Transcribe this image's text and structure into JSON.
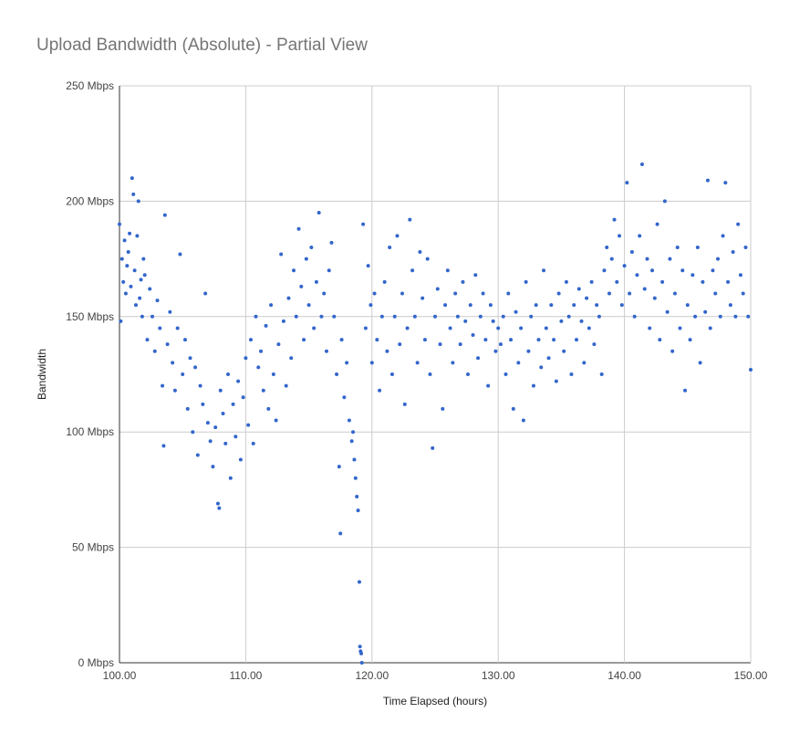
{
  "chart_data": {
    "type": "scatter",
    "title": "Upload Bandwidth (Absolute) - Partial View",
    "xlabel": "Time Elapsed (hours)",
    "ylabel": "Bandwidth",
    "xlim": [
      100,
      150
    ],
    "ylim": [
      0,
      250
    ],
    "x_ticks": [
      100,
      110,
      120,
      130,
      140,
      150
    ],
    "x_tick_labels": [
      "100.00",
      "110.00",
      "120.00",
      "130.00",
      "140.00",
      "150.00"
    ],
    "y_ticks": [
      0,
      50,
      100,
      150,
      200,
      250
    ],
    "y_tick_labels": [
      "0 Mbps",
      "50 Mbps",
      "100 Mbps",
      "150 Mbps",
      "200 Mbps",
      "250 Mbps"
    ],
    "grid": true,
    "legend": "none",
    "point_color": "#3366cc",
    "series": [
      {
        "values": [
          [
            100.0,
            190
          ],
          [
            100.1,
            148
          ],
          [
            100.2,
            175
          ],
          [
            100.3,
            165
          ],
          [
            100.4,
            183
          ],
          [
            100.5,
            160
          ],
          [
            100.6,
            172
          ],
          [
            100.7,
            178
          ],
          [
            100.8,
            186
          ],
          [
            100.9,
            163
          ],
          [
            101.0,
            210
          ],
          [
            101.1,
            203
          ],
          [
            101.2,
            170
          ],
          [
            101.3,
            155
          ],
          [
            101.4,
            185
          ],
          [
            101.5,
            200
          ],
          [
            101.6,
            158
          ],
          [
            101.7,
            166
          ],
          [
            101.8,
            150
          ],
          [
            101.9,
            175
          ],
          [
            102.0,
            168
          ],
          [
            102.2,
            140
          ],
          [
            102.4,
            162
          ],
          [
            102.6,
            150
          ],
          [
            102.8,
            135
          ],
          [
            103.0,
            157
          ],
          [
            103.2,
            145
          ],
          [
            103.4,
            120
          ],
          [
            103.5,
            94
          ],
          [
            103.6,
            194
          ],
          [
            103.8,
            138
          ],
          [
            104.0,
            152
          ],
          [
            104.2,
            130
          ],
          [
            104.4,
            118
          ],
          [
            104.6,
            145
          ],
          [
            104.8,
            177
          ],
          [
            105.0,
            125
          ],
          [
            105.2,
            140
          ],
          [
            105.4,
            110
          ],
          [
            105.6,
            132
          ],
          [
            105.8,
            100
          ],
          [
            106.0,
            128
          ],
          [
            106.2,
            90
          ],
          [
            106.4,
            120
          ],
          [
            106.6,
            112
          ],
          [
            106.8,
            160
          ],
          [
            107.0,
            104
          ],
          [
            107.2,
            96
          ],
          [
            107.4,
            85
          ],
          [
            107.6,
            102
          ],
          [
            107.8,
            69
          ],
          [
            107.9,
            67
          ],
          [
            108.0,
            118
          ],
          [
            108.2,
            108
          ],
          [
            108.4,
            95
          ],
          [
            108.6,
            125
          ],
          [
            108.8,
            80
          ],
          [
            109.0,
            112
          ],
          [
            109.2,
            98
          ],
          [
            109.4,
            122
          ],
          [
            109.6,
            88
          ],
          [
            109.8,
            115
          ],
          [
            110.0,
            132
          ],
          [
            110.2,
            103
          ],
          [
            110.4,
            140
          ],
          [
            110.6,
            95
          ],
          [
            110.8,
            150
          ],
          [
            111.0,
            128
          ],
          [
            111.2,
            135
          ],
          [
            111.4,
            118
          ],
          [
            111.6,
            146
          ],
          [
            111.8,
            110
          ],
          [
            112.0,
            155
          ],
          [
            112.2,
            125
          ],
          [
            112.4,
            105
          ],
          [
            112.6,
            138
          ],
          [
            112.8,
            177
          ],
          [
            113.0,
            148
          ],
          [
            113.2,
            120
          ],
          [
            113.4,
            158
          ],
          [
            113.6,
            132
          ],
          [
            113.8,
            170
          ],
          [
            114.0,
            150
          ],
          [
            114.2,
            188
          ],
          [
            114.4,
            163
          ],
          [
            114.6,
            140
          ],
          [
            114.8,
            175
          ],
          [
            115.0,
            155
          ],
          [
            115.2,
            180
          ],
          [
            115.4,
            145
          ],
          [
            115.6,
            165
          ],
          [
            115.8,
            195
          ],
          [
            116.0,
            150
          ],
          [
            116.2,
            160
          ],
          [
            116.4,
            135
          ],
          [
            116.6,
            170
          ],
          [
            116.8,
            182
          ],
          [
            117.0,
            150
          ],
          [
            117.2,
            125
          ],
          [
            117.4,
            85
          ],
          [
            117.5,
            56
          ],
          [
            117.6,
            140
          ],
          [
            117.8,
            115
          ],
          [
            118.0,
            130
          ],
          [
            118.2,
            105
          ],
          [
            118.4,
            96
          ],
          [
            118.5,
            100
          ],
          [
            118.6,
            88
          ],
          [
            118.7,
            80
          ],
          [
            118.8,
            72
          ],
          [
            118.9,
            66
          ],
          [
            119.0,
            35
          ],
          [
            119.05,
            7
          ],
          [
            119.1,
            5
          ],
          [
            119.15,
            4
          ],
          [
            119.2,
            0
          ],
          [
            119.3,
            190
          ],
          [
            119.5,
            145
          ],
          [
            119.7,
            172
          ],
          [
            119.9,
            155
          ],
          [
            120.0,
            130
          ],
          [
            120.2,
            160
          ],
          [
            120.4,
            140
          ],
          [
            120.6,
            118
          ],
          [
            120.8,
            150
          ],
          [
            121.0,
            165
          ],
          [
            121.2,
            135
          ],
          [
            121.4,
            180
          ],
          [
            121.6,
            125
          ],
          [
            121.8,
            150
          ],
          [
            122.0,
            185
          ],
          [
            122.2,
            138
          ],
          [
            122.4,
            160
          ],
          [
            122.6,
            112
          ],
          [
            122.8,
            145
          ],
          [
            123.0,
            192
          ],
          [
            123.2,
            170
          ],
          [
            123.4,
            150
          ],
          [
            123.6,
            130
          ],
          [
            123.8,
            178
          ],
          [
            124.0,
            158
          ],
          [
            124.2,
            140
          ],
          [
            124.4,
            175
          ],
          [
            124.6,
            125
          ],
          [
            124.8,
            93
          ],
          [
            125.0,
            150
          ],
          [
            125.2,
            162
          ],
          [
            125.4,
            138
          ],
          [
            125.6,
            110
          ],
          [
            125.8,
            155
          ],
          [
            126.0,
            170
          ],
          [
            126.2,
            145
          ],
          [
            126.4,
            130
          ],
          [
            126.6,
            160
          ],
          [
            126.8,
            150
          ],
          [
            127.0,
            138
          ],
          [
            127.2,
            165
          ],
          [
            127.4,
            148
          ],
          [
            127.6,
            125
          ],
          [
            127.8,
            155
          ],
          [
            128.0,
            142
          ],
          [
            128.2,
            168
          ],
          [
            128.4,
            132
          ],
          [
            128.6,
            150
          ],
          [
            128.8,
            160
          ],
          [
            129.0,
            140
          ],
          [
            129.2,
            120
          ],
          [
            129.4,
            155
          ],
          [
            129.6,
            148
          ],
          [
            129.8,
            135
          ],
          [
            130.0,
            145
          ],
          [
            130.2,
            138
          ],
          [
            130.4,
            150
          ],
          [
            130.6,
            125
          ],
          [
            130.8,
            160
          ],
          [
            131.0,
            140
          ],
          [
            131.2,
            110
          ],
          [
            131.4,
            152
          ],
          [
            131.6,
            130
          ],
          [
            131.8,
            145
          ],
          [
            132.0,
            105
          ],
          [
            132.2,
            165
          ],
          [
            132.4,
            135
          ],
          [
            132.6,
            150
          ],
          [
            132.8,
            120
          ],
          [
            133.0,
            155
          ],
          [
            133.2,
            140
          ],
          [
            133.4,
            128
          ],
          [
            133.6,
            170
          ],
          [
            133.8,
            145
          ],
          [
            134.0,
            132
          ],
          [
            134.2,
            155
          ],
          [
            134.4,
            140
          ],
          [
            134.6,
            122
          ],
          [
            134.8,
            160
          ],
          [
            135.0,
            148
          ],
          [
            135.2,
            135
          ],
          [
            135.4,
            165
          ],
          [
            135.6,
            150
          ],
          [
            135.8,
            125
          ],
          [
            136.0,
            155
          ],
          [
            136.2,
            140
          ],
          [
            136.4,
            162
          ],
          [
            136.6,
            148
          ],
          [
            136.8,
            130
          ],
          [
            137.0,
            158
          ],
          [
            137.2,
            145
          ],
          [
            137.4,
            165
          ],
          [
            137.6,
            138
          ],
          [
            137.8,
            155
          ],
          [
            138.0,
            150
          ],
          [
            138.2,
            125
          ],
          [
            138.4,
            170
          ],
          [
            138.6,
            180
          ],
          [
            138.8,
            160
          ],
          [
            139.0,
            175
          ],
          [
            139.2,
            192
          ],
          [
            139.4,
            165
          ],
          [
            139.6,
            185
          ],
          [
            139.8,
            155
          ],
          [
            140.0,
            172
          ],
          [
            140.2,
            208
          ],
          [
            140.4,
            160
          ],
          [
            140.6,
            178
          ],
          [
            140.8,
            150
          ],
          [
            141.0,
            168
          ],
          [
            141.2,
            185
          ],
          [
            141.4,
            216
          ],
          [
            141.6,
            162
          ],
          [
            141.8,
            175
          ],
          [
            142.0,
            145
          ],
          [
            142.2,
            170
          ],
          [
            142.4,
            158
          ],
          [
            142.6,
            190
          ],
          [
            142.8,
            140
          ],
          [
            143.0,
            165
          ],
          [
            143.2,
            200
          ],
          [
            143.4,
            152
          ],
          [
            143.6,
            175
          ],
          [
            143.8,
            135
          ],
          [
            144.0,
            160
          ],
          [
            144.2,
            180
          ],
          [
            144.4,
            145
          ],
          [
            144.6,
            170
          ],
          [
            144.8,
            118
          ],
          [
            145.0,
            155
          ],
          [
            145.2,
            140
          ],
          [
            145.4,
            168
          ],
          [
            145.6,
            150
          ],
          [
            145.8,
            180
          ],
          [
            146.0,
            130
          ],
          [
            146.2,
            165
          ],
          [
            146.4,
            152
          ],
          [
            146.6,
            209
          ],
          [
            146.8,
            145
          ],
          [
            147.0,
            170
          ],
          [
            147.2,
            160
          ],
          [
            147.4,
            175
          ],
          [
            147.6,
            150
          ],
          [
            147.8,
            185
          ],
          [
            148.0,
            208
          ],
          [
            148.2,
            165
          ],
          [
            148.4,
            155
          ],
          [
            148.6,
            178
          ],
          [
            148.8,
            150
          ],
          [
            149.0,
            190
          ],
          [
            149.2,
            168
          ],
          [
            149.4,
            160
          ],
          [
            149.6,
            180
          ],
          [
            149.8,
            150
          ],
          [
            150.0,
            127
          ]
        ]
      }
    ]
  }
}
